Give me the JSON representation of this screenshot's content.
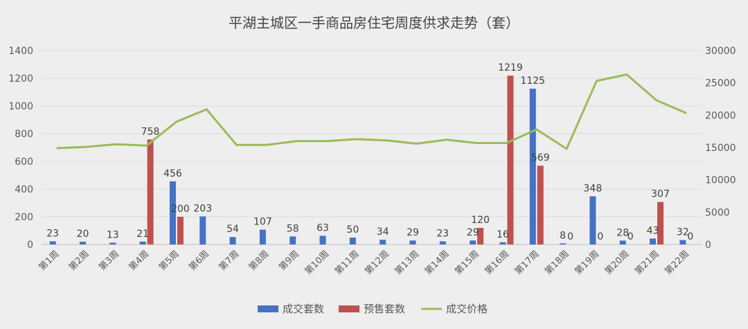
{
  "chart_data": {
    "type": "bar",
    "title": "平湖主城区一手商品房住宅周度供求走势（套）",
    "categories": [
      "第1周",
      "第2周",
      "第3周",
      "第4周",
      "第5周",
      "第6周",
      "第7周",
      "第8周",
      "第9周",
      "第10周",
      "第11周",
      "第12周",
      "第13周",
      "第14周",
      "第15周",
      "第16周",
      "第17周",
      "第18周",
      "第19周",
      "第20周",
      "第21周",
      "第22周"
    ],
    "series": [
      {
        "name": "成交套数",
        "type": "bar",
        "axis": "left",
        "color": "#4472c4",
        "values": [
          23,
          20,
          13,
          21,
          456,
          203,
          54,
          107,
          58,
          63,
          50,
          34,
          29,
          23,
          29,
          16,
          1125,
          8,
          348,
          28,
          43,
          32
        ]
      },
      {
        "name": "预售套数",
        "type": "bar",
        "axis": "left",
        "color": "#c0504d",
        "values": [
          null,
          null,
          null,
          758,
          200,
          null,
          null,
          null,
          null,
          null,
          null,
          null,
          null,
          null,
          120,
          1219,
          569,
          0,
          0,
          0,
          307,
          0
        ]
      },
      {
        "name": "成交价格",
        "type": "line",
        "axis": "right",
        "color": "#9bbb59",
        "values": [
          14900,
          15100,
          15500,
          15300,
          19000,
          20900,
          15400,
          15400,
          16000,
          16000,
          16300,
          16100,
          15600,
          16200,
          15700,
          15700,
          17800,
          14800,
          25300,
          26300,
          22300,
          20300
        ]
      }
    ],
    "left_axis": {
      "ylim": [
        0,
        1400
      ],
      "ticks": [
        0,
        200,
        400,
        600,
        800,
        1000,
        1200,
        1400
      ]
    },
    "right_axis": {
      "ylim": [
        0,
        30000
      ],
      "ticks": [
        0,
        5000,
        10000,
        15000,
        20000,
        25000,
        30000
      ]
    },
    "legend_position": "bottom",
    "grid": true
  }
}
